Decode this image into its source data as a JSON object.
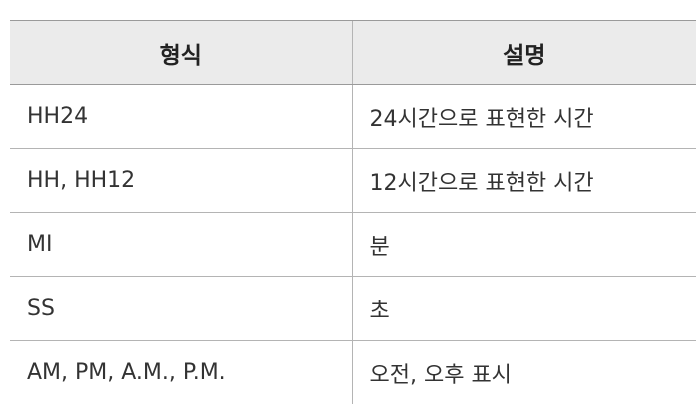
{
  "table": {
    "headers": [
      "형식",
      "설명"
    ],
    "rows": [
      {
        "format": "HH24",
        "description": "24시간으로 표현한 시간"
      },
      {
        "format": "HH, HH12",
        "description": "12시간으로 표현한 시간"
      },
      {
        "format": "MI",
        "description": "분"
      },
      {
        "format": "SS",
        "description": "초"
      },
      {
        "format": "AM, PM, A.M., P.M.",
        "description": "오전, 오후 표시"
      }
    ]
  }
}
